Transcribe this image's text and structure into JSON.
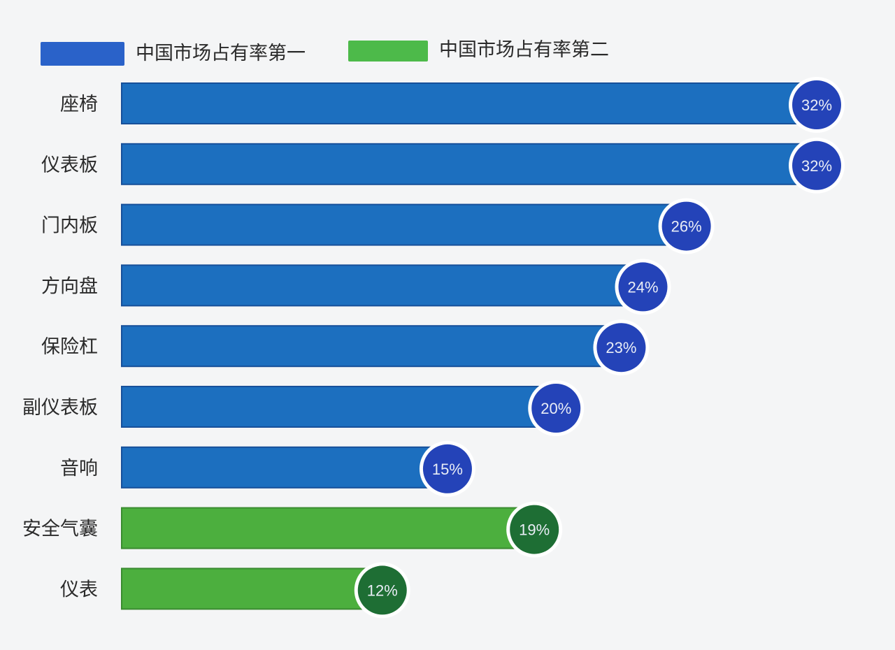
{
  "colors": {
    "blue_bar": "#1c6fbf",
    "blue_bar_edge": "#17509a",
    "blue_circle": "#2443b8",
    "green_bar": "#4caf3e",
    "green_bar_edge": "#3a8b30",
    "green_circle": "#1e6e34",
    "blue_legend": "#2a62c9",
    "green_legend": "#4dba4a",
    "background": "#f4f5f6"
  },
  "chart_data": {
    "type": "bar",
    "orientation": "horizontal",
    "title": "",
    "xlabel": "",
    "ylabel": "",
    "xlim": [
      0,
      32
    ],
    "grid": false,
    "legend_position": "top-left",
    "legend": [
      {
        "name": "中国市场占有率第一",
        "color": "#2a62c9"
      },
      {
        "name": "中国市场占有率第二",
        "color": "#4dba4a"
      }
    ],
    "categories": [
      "座椅",
      "仪表板",
      "门内板",
      "方向盘",
      "保险杠",
      "副仪表板",
      "音响",
      "安全气囊",
      "仪表"
    ],
    "values": [
      32,
      32,
      26,
      24,
      23,
      20,
      15,
      19,
      12
    ],
    "value_labels": [
      "32%",
      "32%",
      "26%",
      "24%",
      "23%",
      "20%",
      "15%",
      "19%",
      "12%"
    ],
    "series_index": [
      0,
      0,
      0,
      0,
      0,
      0,
      0,
      1,
      1
    ]
  }
}
